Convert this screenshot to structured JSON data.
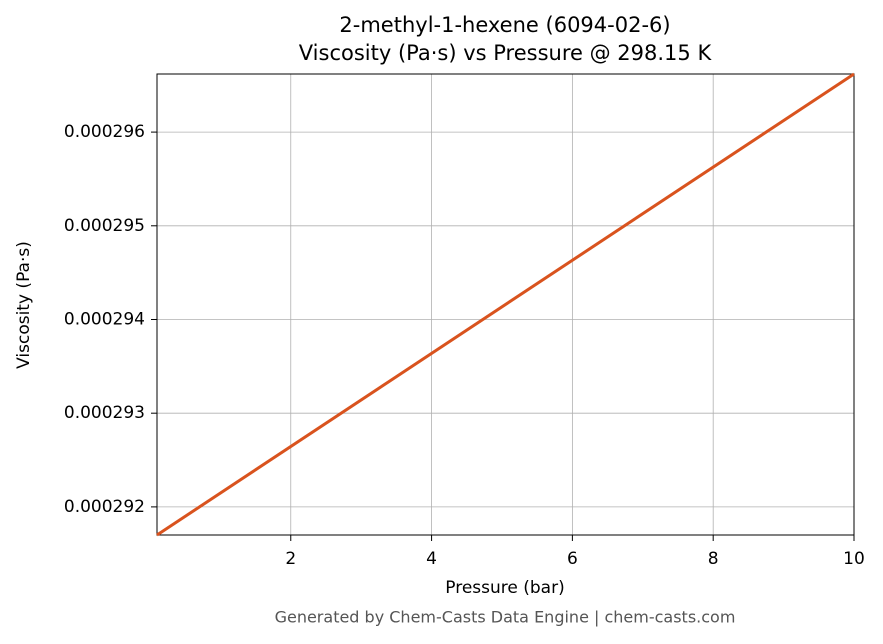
{
  "chart_data": {
    "type": "line",
    "title": "2-methyl-1-hexene (6094-02-6)",
    "subtitle": "Viscosity (Pa·s) vs Pressure @ 298.15 K",
    "x_label": "Pressure (bar)",
    "y_label": "Viscosity (Pa·s)",
    "footer": "Generated by Chem-Casts Data Engine | chem-casts.com",
    "x": [
      0.1,
      10
    ],
    "series": [
      {
        "name": "Viscosity",
        "color": "#d9531e",
        "values": [
          0.0002917,
          0.00029662
        ]
      }
    ],
    "xlim": [
      0.1,
      10
    ],
    "xticks": [
      2,
      4,
      6,
      8,
      10
    ],
    "ylim": [
      0.0002917,
      0.00029662
    ],
    "yticks": [
      0.000292,
      0.000293,
      0.000294,
      0.000295,
      0.000296
    ],
    "grid": true
  }
}
